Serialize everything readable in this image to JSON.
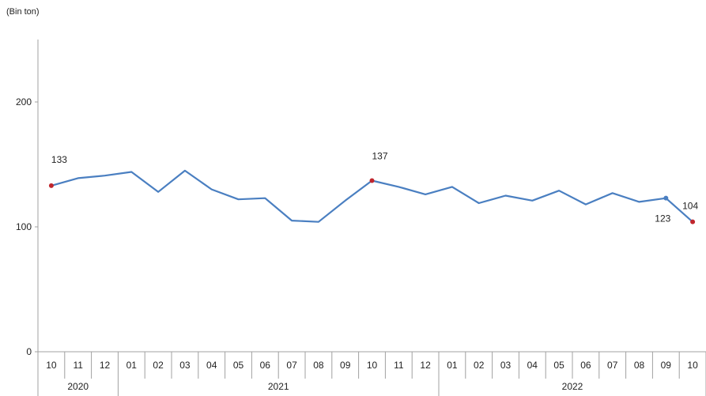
{
  "chart_data": {
    "type": "line",
    "unit_label": "(Bin ton)",
    "title": "",
    "xlabel": "",
    "ylabel": "(Bin ton)",
    "ylim": [
      0,
      250
    ],
    "yticks": [
      0,
      100,
      200
    ],
    "grid": false,
    "legend": "none",
    "categories": [
      "10",
      "11",
      "12",
      "01",
      "02",
      "03",
      "04",
      "05",
      "06",
      "07",
      "08",
      "09",
      "10",
      "11",
      "12",
      "01",
      "02",
      "03",
      "04",
      "05",
      "06",
      "07",
      "08",
      "09",
      "10"
    ],
    "years": [
      {
        "label": "2020",
        "start": 0,
        "count": 3
      },
      {
        "label": "2021",
        "start": 3,
        "count": 12
      },
      {
        "label": "2022",
        "start": 15,
        "count": 10
      }
    ],
    "series": [
      {
        "color": "#4a7fc1",
        "values": [
          133,
          139,
          141,
          144,
          128,
          145,
          130,
          122,
          123,
          105,
          104,
          121,
          137,
          132,
          126,
          132,
          119,
          125,
          121,
          129,
          118,
          127,
          120,
          123,
          104
        ]
      }
    ],
    "highlighted_points": [
      {
        "index": 0,
        "label": "133",
        "color": "#c0262d"
      },
      {
        "index": 12,
        "label": "137",
        "color": "#c0262d"
      },
      {
        "index": 23,
        "label": "123",
        "color": "#4a7fc1"
      },
      {
        "index": 24,
        "label": "104",
        "color": "#c0262d"
      }
    ]
  }
}
